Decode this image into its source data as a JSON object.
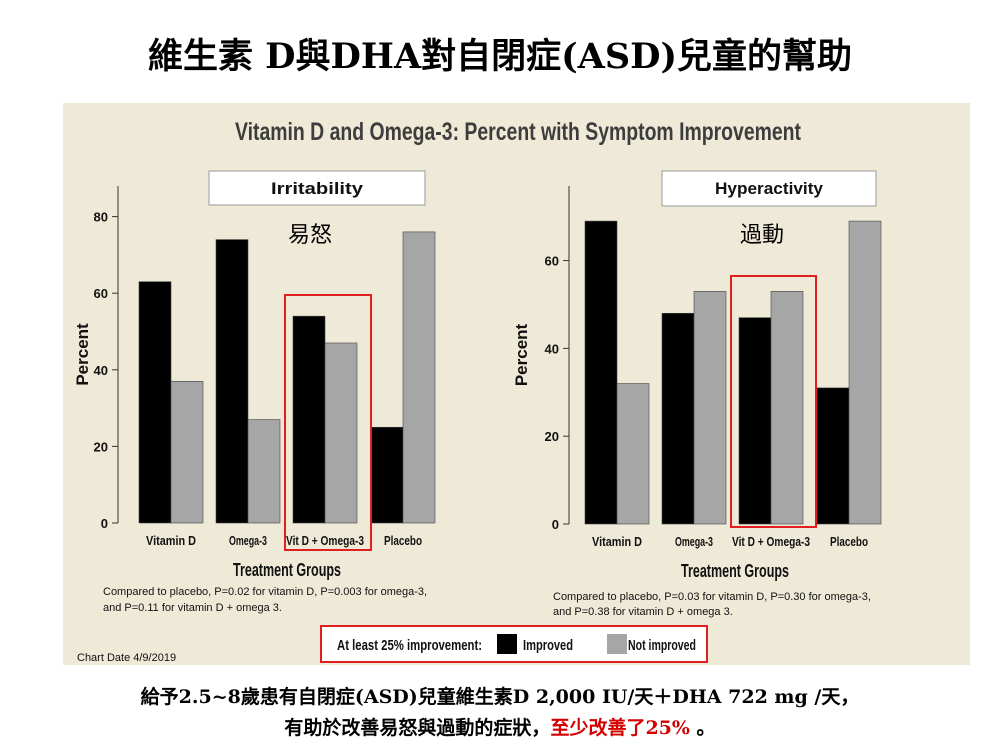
{
  "slide": {
    "title": "維生素 D與DHA對自閉症(ASD)兒童的幫助",
    "footer_line1": "給予2.5~8歲患有自閉症(ASD)兒童維生素D 2,000 IU/天＋DHA 722 mg /天，",
    "footer_line2_main": "有助於改善易怒與過動的症狀，",
    "footer_line2_highlight": "至少改善了25%",
    "footer_line2_end": " 。"
  },
  "chart_header": {
    "title": "Vitamin D and Omega-3: Percent with Symptom Improvement",
    "chart_date": "Chart Date 4/9/2019",
    "legend_prefix": "At least 25% improvement:",
    "colors": {
      "improved": "#000000",
      "not_improved": "#a6a6a6",
      "highlight_box": "#e02020"
    }
  },
  "chart_data": [
    {
      "type": "bar",
      "panel_title": "Irritability",
      "annotation": "易怒",
      "categories": [
        "Vitamin D",
        "Omega-3",
        "Vit D + Omega-3",
        "Placebo"
      ],
      "series": [
        {
          "name": "Improved",
          "values": [
            63,
            74,
            54,
            25
          ]
        },
        {
          "name": "Not improved",
          "values": [
            37,
            27,
            47,
            76
          ]
        }
      ],
      "ylabel": "Percent",
      "xlabel": "Treatment Groups",
      "ylim": [
        0,
        88
      ],
      "yticks": [
        0,
        20,
        40,
        60,
        80
      ],
      "highlighted_category": "Vit D + Omega-3",
      "footnote1": "Compared to placebo, P=0.02 for vitamin D, P=0.003 for omega-3,",
      "footnote2": "and P=0.11 for vitamin D + omega 3."
    },
    {
      "type": "bar",
      "panel_title": "Hyperactivity",
      "annotation": "過動",
      "categories": [
        "Vitamin D",
        "Omega-3",
        "Vit D + Omega-3",
        "Placebo"
      ],
      "series": [
        {
          "name": "Improved",
          "values": [
            69,
            48,
            47,
            31
          ]
        },
        {
          "name": "Not improved",
          "values": [
            32,
            53,
            53,
            69
          ]
        }
      ],
      "ylabel": "Percent",
      "xlabel": "Treatment Groups",
      "ylim": [
        0,
        77
      ],
      "yticks": [
        0,
        20,
        40,
        60
      ],
      "highlighted_category": "Vit D + Omega-3",
      "footnote1": "Compared to placebo, P=0.03 for vitamin D, P=0.30 for omega-3,",
      "footnote2": "and P=0.38 for vitamin D + omega 3."
    }
  ]
}
